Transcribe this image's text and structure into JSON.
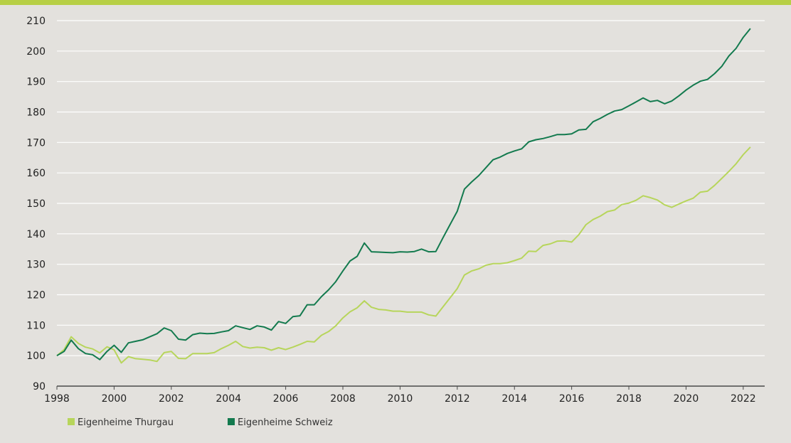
{
  "chart_data": {
    "type": "line",
    "title": "",
    "xlabel": "",
    "ylabel": "",
    "xlim": [
      1998,
      2022.75
    ],
    "ylim": [
      90,
      210
    ],
    "x_ticks": [
      1998,
      2000,
      2002,
      2004,
      2006,
      2008,
      2010,
      2012,
      2014,
      2016,
      2018,
      2020,
      2022
    ],
    "y_ticks": [
      90,
      100,
      110,
      120,
      130,
      140,
      150,
      160,
      170,
      180,
      190,
      200,
      210
    ],
    "grid": "horizontal",
    "legend": "bottom-left",
    "x": [
      1998.0,
      1998.25,
      1998.5,
      1998.75,
      1999.0,
      1999.25,
      1999.5,
      1999.75,
      2000.0,
      2000.25,
      2000.5,
      2000.75,
      2001.0,
      2001.25,
      2001.5,
      2001.75,
      2002.0,
      2002.25,
      2002.5,
      2002.75,
      2003.0,
      2003.25,
      2003.5,
      2003.75,
      2004.0,
      2004.25,
      2004.5,
      2004.75,
      2005.0,
      2005.25,
      2005.5,
      2005.75,
      2006.0,
      2006.25,
      2006.5,
      2006.75,
      2007.0,
      2007.25,
      2007.5,
      2007.75,
      2008.0,
      2008.25,
      2008.5,
      2008.75,
      2009.0,
      2009.25,
      2009.5,
      2009.75,
      2010.0,
      2010.25,
      2010.5,
      2010.75,
      2011.0,
      2011.25,
      2011.5,
      2011.75,
      2012.0,
      2012.25,
      2012.5,
      2012.75,
      2013.0,
      2013.25,
      2013.5,
      2013.75,
      2014.0,
      2014.25,
      2014.5,
      2014.75,
      2015.0,
      2015.25,
      2015.5,
      2015.75,
      2016.0,
      2016.25,
      2016.5,
      2016.75,
      2017.0,
      2017.25,
      2017.5,
      2017.75,
      2018.0,
      2018.25,
      2018.5,
      2018.75,
      2019.0,
      2019.25,
      2019.5,
      2019.75,
      2020.0,
      2020.25,
      2020.5,
      2020.75,
      2021.0,
      2021.25,
      2021.5,
      2021.75,
      2022.0,
      2022.25
    ],
    "series": [
      {
        "name": "Eigenheime Thurgau",
        "color": "#b7d55b",
        "values": [
          100.0,
          102.0,
          106.2,
          104.0,
          102.8,
          102.2,
          100.9,
          102.9,
          101.9,
          97.6,
          99.7,
          99.0,
          98.8,
          98.6,
          98.1,
          101.0,
          101.4,
          99.1,
          99.0,
          100.7,
          100.7,
          100.7,
          101.0,
          102.3,
          103.4,
          104.7,
          103.0,
          102.5,
          102.8,
          102.6,
          101.8,
          102.6,
          102.0,
          102.8,
          103.7,
          104.7,
          104.5,
          106.7,
          107.9,
          109.8,
          112.4,
          114.4,
          115.7,
          118.0,
          115.9,
          115.2,
          115.0,
          114.6,
          114.6,
          114.3,
          114.3,
          114.3,
          113.4,
          113.0,
          116.0,
          119.0,
          122.0,
          126.5,
          127.8,
          128.5,
          129.7,
          130.2,
          130.2,
          130.5,
          131.2,
          132.0,
          134.3,
          134.2,
          136.2,
          136.7,
          137.6,
          137.7,
          137.3,
          139.7,
          143.0,
          144.7,
          145.8,
          147.3,
          147.8,
          149.6,
          150.1,
          151.0,
          152.5,
          151.9,
          151.1,
          149.5,
          148.7,
          149.8,
          150.8,
          151.7,
          153.7,
          154.0,
          155.9,
          158.2,
          160.5,
          163.0,
          166.0,
          168.5
        ]
      },
      {
        "name": "Eigenheime Schweiz",
        "color": "#137a4e",
        "values": [
          100.0,
          101.4,
          105.1,
          102.3,
          100.7,
          100.3,
          98.7,
          101.4,
          103.4,
          101.1,
          104.2,
          104.7,
          105.2,
          106.2,
          107.2,
          109.1,
          108.2,
          105.4,
          105.1,
          106.9,
          107.4,
          107.2,
          107.3,
          107.8,
          108.2,
          109.8,
          109.2,
          108.6,
          109.8,
          109.4,
          108.4,
          111.2,
          110.6,
          112.8,
          113.1,
          116.7,
          116.7,
          119.4,
          121.6,
          124.3,
          127.8,
          131.1,
          132.6,
          137.0,
          134.1,
          134.0,
          133.9,
          133.8,
          134.1,
          134.0,
          134.2,
          135.0,
          134.1,
          134.2,
          138.7,
          143.1,
          147.4,
          154.7,
          157.0,
          159.1,
          161.7,
          164.3,
          165.2,
          166.4,
          167.2,
          167.9,
          170.2,
          170.9,
          171.3,
          171.9,
          172.6,
          172.6,
          172.8,
          174.1,
          174.3,
          176.8,
          177.9,
          179.2,
          180.3,
          180.8,
          182.0,
          183.3,
          184.6,
          183.4,
          183.8,
          182.7,
          183.6,
          185.3,
          187.2,
          188.8,
          190.1,
          190.7,
          192.6,
          195.0,
          198.4,
          200.9,
          204.5,
          207.4
        ]
      }
    ]
  },
  "legend": {
    "items": [
      {
        "label": "Eigenheime Thurgau",
        "color": "#b7d55b"
      },
      {
        "label": "Eigenheime Schweiz",
        "color": "#137a4e"
      }
    ]
  },
  "colors": {
    "background": "#e3e1dd",
    "top_bar": "#b7cf45",
    "grid": "#ffffff",
    "axis": "#4a4a4a"
  }
}
